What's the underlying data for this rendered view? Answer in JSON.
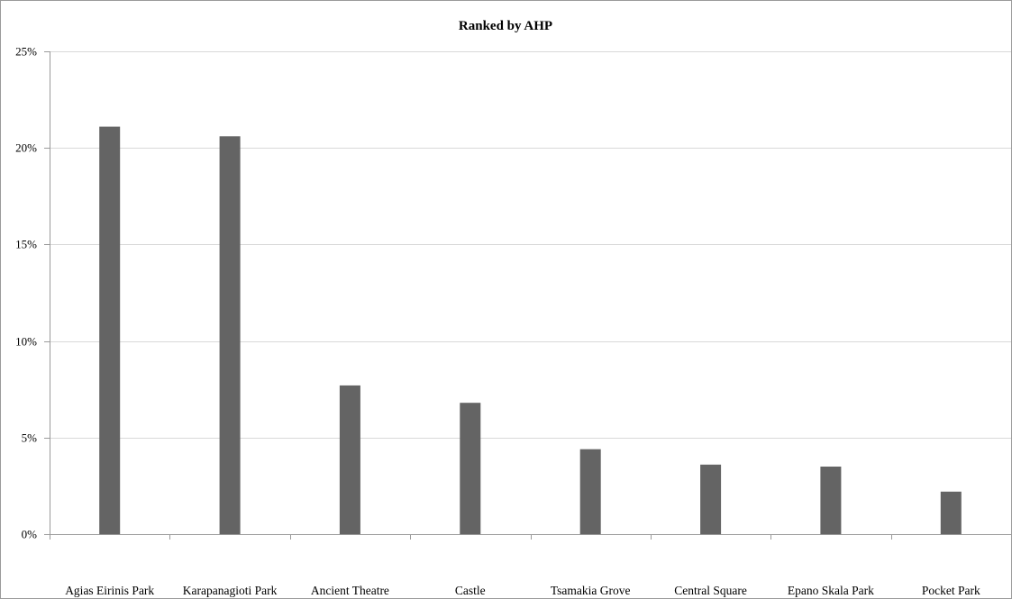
{
  "chart_data": {
    "type": "bar",
    "title": "Ranked by AHP",
    "xlabel": "",
    "ylabel": "",
    "categories": [
      "Agias Eirinis Park",
      "Karapanagioti Park",
      "Ancient Theatre",
      "Castle",
      "Tsamakia Grove",
      "Central Square",
      "Epano Skala Park",
      "Pocket Park"
    ],
    "values": [
      21.1,
      20.6,
      7.7,
      6.8,
      4.4,
      3.6,
      3.5,
      2.2
    ],
    "ylim": [
      0,
      25
    ],
    "yticks": [
      0,
      5,
      10,
      15,
      20,
      25
    ],
    "ytick_labels": [
      "0%",
      "5%",
      "10%",
      "15%",
      "20%",
      "25%"
    ],
    "grid": true,
    "legend": "none",
    "bar_color": "#646464",
    "grid_color": "#d9d9d9",
    "axis_color": "#9a9a9a"
  }
}
